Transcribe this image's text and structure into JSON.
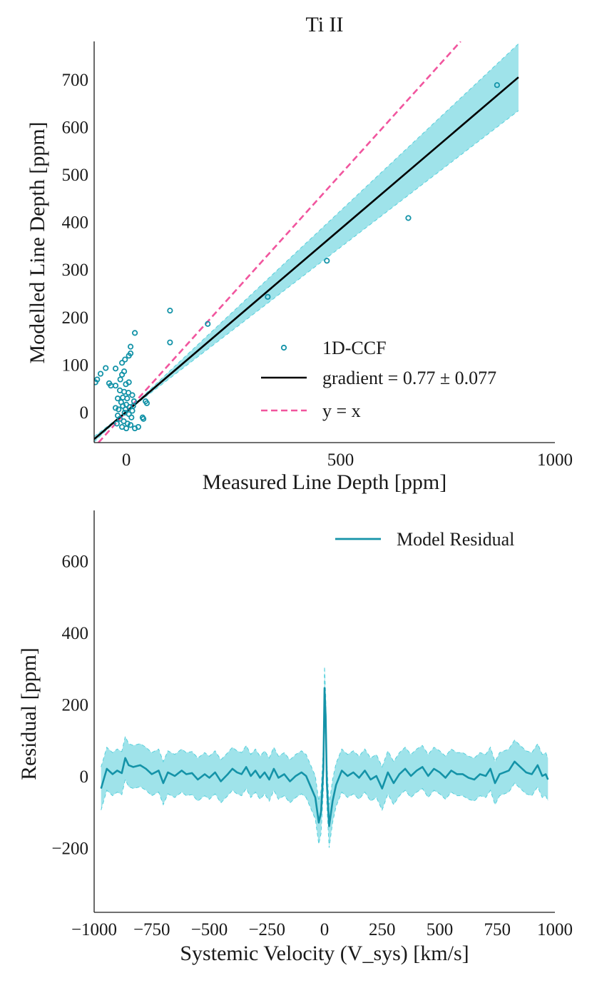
{
  "chart_data": [
    {
      "type": "scatter",
      "title": "Ti II",
      "xlabel": "Measured Line Depth [ppm]",
      "ylabel": "Modelled Line Depth [ppm]",
      "xlim": [
        -75,
        1000
      ],
      "ylim": [
        -65,
        780
      ],
      "xticks": [
        0,
        500,
        1000
      ],
      "yticks": [
        0,
        100,
        200,
        300,
        400,
        500,
        600,
        700
      ],
      "grid": false,
      "legend_position": "lower-right",
      "colors": {
        "points": "#1493A8",
        "fit": "#000000",
        "band": "#9FE3EA",
        "band_edge": "#56D0DC",
        "identity": "#F1559E"
      },
      "series": [
        {
          "name": "1D-CCF",
          "kind": "points",
          "points": [
            [
              865,
              688
            ],
            [
              658,
              408
            ],
            [
              468,
              318
            ],
            [
              330,
              242
            ],
            [
              190,
              185
            ],
            [
              102,
              213
            ],
            [
              102,
              146
            ],
            [
              20,
              166
            ],
            [
              10,
              137
            ],
            [
              10,
              123
            ],
            [
              6,
              118
            ],
            [
              -3,
              110
            ],
            [
              -10,
              103
            ],
            [
              -25,
              91
            ],
            [
              -5,
              85
            ],
            [
              -48,
              92
            ],
            [
              -60,
              80
            ],
            [
              -68,
              68
            ],
            [
              -72,
              62
            ],
            [
              -36,
              55
            ],
            [
              -25,
              55
            ],
            [
              -14,
              68
            ],
            [
              -1,
              58
            ],
            [
              6,
              62
            ],
            [
              -10,
              78
            ],
            [
              -40,
              60
            ],
            [
              -15,
              45
            ],
            [
              -5,
              42
            ],
            [
              5,
              40
            ],
            [
              14,
              35
            ],
            [
              18,
              22
            ],
            [
              -20,
              28
            ],
            [
              -12,
              20
            ],
            [
              -8,
              12
            ],
            [
              0,
              15
            ],
            [
              8,
              10
            ],
            [
              -18,
              5
            ],
            [
              -4,
              -2
            ],
            [
              6,
              -5
            ],
            [
              12,
              -12
            ],
            [
              -15,
              -15
            ],
            [
              -6,
              -20
            ],
            [
              3,
              -25
            ],
            [
              10,
              -28
            ],
            [
              -10,
              -32
            ],
            [
              0,
              -35
            ],
            [
              20,
              -35
            ],
            [
              28,
              -32
            ],
            [
              -20,
              -8
            ],
            [
              -25,
              8
            ],
            [
              14,
              2
            ],
            [
              45,
              22
            ],
            [
              48,
              18
            ],
            [
              38,
              -12
            ],
            [
              40,
              -15
            ],
            [
              -8,
              30
            ],
            [
              2,
              28
            ],
            [
              16,
              12
            ],
            [
              -22,
              -25
            ],
            [
              -2,
              5
            ]
          ]
        },
        {
          "name": "gradient = 0.77 ± 0.077",
          "kind": "line",
          "slope": 0.77,
          "slope_err": 0.077,
          "x_range": [
            -75,
            915
          ]
        },
        {
          "name": "y = x",
          "kind": "dashed-line",
          "slope": 1.0,
          "x_range": [
            -65,
            780
          ]
        }
      ]
    },
    {
      "type": "line",
      "xlabel": "Systemic Velocity (V_sys) [km/s]",
      "ylabel": "Residual [ppm]",
      "xlim": [
        -1000,
        1000
      ],
      "ylim": [
        -380,
        740
      ],
      "xticks": [
        -1000,
        -750,
        -500,
        -250,
        0,
        250,
        500,
        750,
        1000
      ],
      "xtick_labels": [
        "−1000",
        "−750",
        "−500",
        "−250",
        "0",
        "250",
        "500",
        "750",
        "1000"
      ],
      "yticks": [
        -200,
        0,
        200,
        400,
        600
      ],
      "ytick_labels": [
        "−200",
        "0",
        "200",
        "400",
        "600"
      ],
      "grid": false,
      "legend_position": "top-right",
      "band_halfwidth_ppm": 60,
      "colors": {
        "line": "#1493A8",
        "band": "#9FE3EA",
        "band_edge": "#56D0DC"
      },
      "series": [
        {
          "name": "Model Residual",
          "x": [
            -970,
            -945,
            -920,
            -900,
            -880,
            -865,
            -850,
            -830,
            -800,
            -775,
            -750,
            -720,
            -700,
            -680,
            -650,
            -620,
            -600,
            -575,
            -550,
            -520,
            -500,
            -475,
            -450,
            -420,
            -400,
            -380,
            -360,
            -340,
            -320,
            -300,
            -280,
            -260,
            -240,
            -220,
            -200,
            -175,
            -150,
            -125,
            -100,
            -80,
            -60,
            -40,
            -25,
            -15,
            -5,
            0,
            5,
            10,
            20,
            35,
            50,
            75,
            100,
            125,
            150,
            175,
            200,
            225,
            250,
            275,
            300,
            325,
            350,
            375,
            400,
            425,
            450,
            475,
            500,
            525,
            550,
            575,
            600,
            625,
            650,
            675,
            700,
            720,
            740,
            760,
            780,
            800,
            825,
            850,
            875,
            900,
            925,
            945,
            960,
            970
          ],
          "values": [
            -35,
            20,
            5,
            15,
            8,
            50,
            30,
            25,
            30,
            20,
            5,
            15,
            -20,
            10,
            0,
            15,
            5,
            8,
            -10,
            5,
            -5,
            10,
            -15,
            5,
            20,
            10,
            5,
            25,
            0,
            15,
            -5,
            10,
            -10,
            20,
            -5,
            5,
            -15,
            0,
            10,
            0,
            -30,
            -60,
            -130,
            -100,
            20,
            245,
            165,
            -20,
            -140,
            -70,
            -25,
            15,
            0,
            10,
            -5,
            15,
            -10,
            0,
            -35,
            10,
            -20,
            5,
            20,
            0,
            15,
            25,
            0,
            20,
            10,
            -5,
            15,
            5,
            5,
            -5,
            -10,
            5,
            0,
            20,
            -20,
            5,
            10,
            15,
            40,
            25,
            10,
            5,
            30,
            0,
            5,
            -10
          ]
        }
      ]
    }
  ]
}
